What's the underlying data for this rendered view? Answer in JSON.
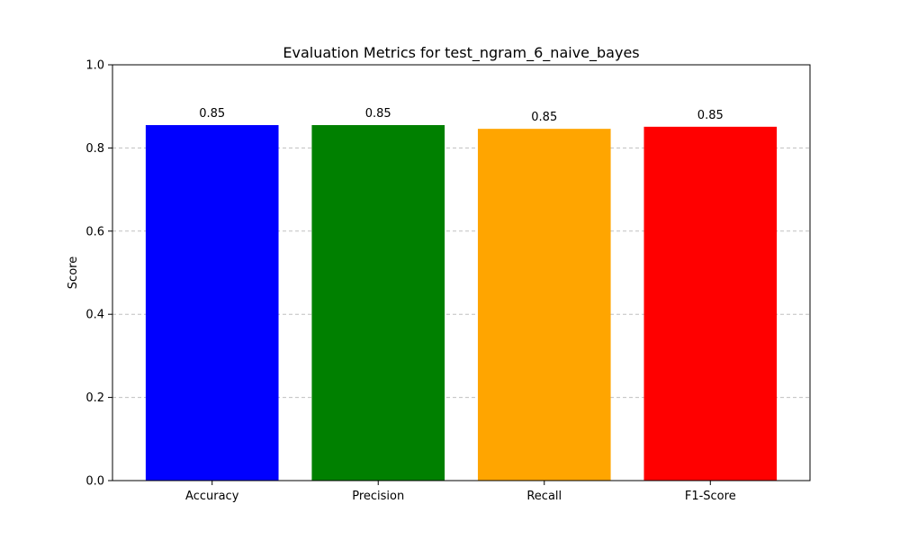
{
  "chart_data": {
    "type": "bar",
    "title": "Evaluation Metrics for test_ngram_6_naive_bayes",
    "xlabel": "",
    "ylabel": "Score",
    "categories": [
      "Accuracy",
      "Precision",
      "Recall",
      "F1-Score"
    ],
    "values": [
      0.855,
      0.855,
      0.846,
      0.851
    ],
    "value_labels": [
      "0.85",
      "0.85",
      "0.85",
      "0.85"
    ],
    "colors": [
      "#0000ff",
      "#008000",
      "#ffa500",
      "#ff0000"
    ],
    "ylim": [
      0,
      1
    ],
    "yticks": [
      0.0,
      0.2,
      0.4,
      0.6,
      0.8,
      1.0
    ],
    "ytick_labels": [
      "0.0",
      "0.2",
      "0.4",
      "0.6",
      "0.8",
      "1.0"
    ],
    "grid": {
      "axis": "y",
      "style": "dashed",
      "color": "#c0c0c0"
    }
  }
}
